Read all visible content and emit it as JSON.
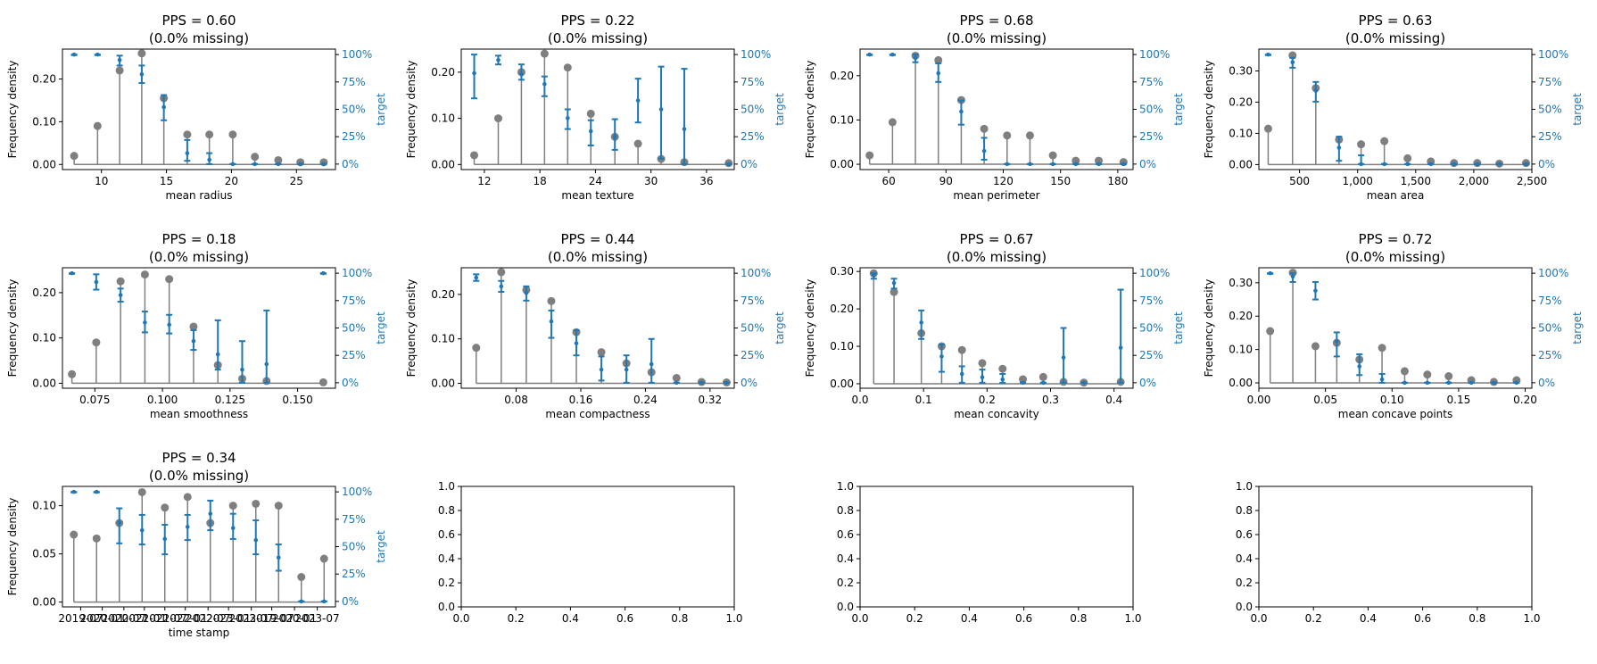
{
  "colors": {
    "stem": "#7f7f7f",
    "marker": "#7f7f7f",
    "target": "#1f77b4",
    "axis": "#000000"
  },
  "y_label": "Frequency density",
  "y2_label": "target",
  "y2_ticks": [
    "0%",
    "25%",
    "50%",
    "75%",
    "100%"
  ],
  "chart_data": [
    {
      "type": "stem+errorbar",
      "title": "PPS = 0.60",
      "subtitle": "(0.0% missing)",
      "xlabel": "mean radius",
      "xlim": [
        7.0,
        28.0
      ],
      "xticks": [
        10,
        15,
        20,
        25
      ],
      "xtick_labels": [
        "10",
        "15",
        "20",
        "25"
      ],
      "ylim": [
        -0.012,
        0.27
      ],
      "yticks": [
        0.0,
        0.1,
        0.2
      ],
      "ytick_labels": [
        "0.00",
        "0.10",
        "0.20"
      ],
      "x": [
        7.9,
        9.7,
        11.4,
        13.1,
        14.8,
        16.6,
        18.3,
        20.1,
        21.8,
        23.6,
        25.3,
        27.1
      ],
      "density": [
        0.02,
        0.09,
        0.22,
        0.26,
        0.155,
        0.07,
        0.07,
        0.07,
        0.018,
        0.01,
        0.005,
        0.005
      ],
      "target": [
        1.0,
        1.0,
        0.95,
        0.82,
        0.52,
        0.1,
        0.04,
        0.0,
        0.0,
        0.0,
        0.0,
        0.0
      ],
      "target_low": [
        0.995,
        0.995,
        0.9,
        0.74,
        0.4,
        0.03,
        0.0,
        0.0,
        0.0,
        0.0,
        0.0,
        0.0
      ],
      "target_high": [
        1.0,
        1.0,
        0.99,
        0.9,
        0.63,
        0.22,
        0.1,
        0.0,
        0.0,
        0.0,
        0.0,
        0.0
      ]
    },
    {
      "type": "stem+errorbar",
      "title": "PPS = 0.22",
      "subtitle": "(0.0% missing)",
      "xlabel": "mean texture",
      "xlim": [
        9.5,
        39.0
      ],
      "xticks": [
        12,
        18,
        24,
        30,
        36
      ],
      "xtick_labels": [
        "12",
        "18",
        "24",
        "30",
        "36"
      ],
      "ylim": [
        -0.011,
        0.25
      ],
      "yticks": [
        0.0,
        0.1,
        0.2
      ],
      "ytick_labels": [
        "0.00",
        "0.10",
        "0.20"
      ],
      "x": [
        10.9,
        13.5,
        16.0,
        18.5,
        21.0,
        23.5,
        26.1,
        28.6,
        31.1,
        33.6,
        38.4
      ],
      "density": [
        0.02,
        0.1,
        0.2,
        0.24,
        0.21,
        0.11,
        0.06,
        0.045,
        0.012,
        0.005,
        0.003
      ],
      "target": [
        0.83,
        0.95,
        0.82,
        0.73,
        0.42,
        0.3,
        0.25,
        0.58,
        0.5,
        0.32,
        0.0
      ],
      "target_low": [
        0.6,
        0.91,
        0.77,
        0.62,
        0.32,
        0.17,
        0.13,
        0.38,
        0.05,
        0.0,
        0.0
      ],
      "target_high": [
        1.0,
        0.99,
        0.91,
        0.8,
        0.5,
        0.4,
        0.41,
        0.78,
        0.89,
        0.87,
        0.0
      ]
    },
    {
      "type": "stem+errorbar",
      "title": "PPS = 0.68",
      "subtitle": "(0.0% missing)",
      "xlabel": "mean perimeter",
      "xlim": [
        45.0,
        188.0
      ],
      "xticks": [
        60,
        90,
        120,
        150,
        180
      ],
      "xtick_labels": [
        "60",
        "90",
        "120",
        "150",
        "180"
      ],
      "ylim": [
        -0.012,
        0.26
      ],
      "yticks": [
        0.0,
        0.1,
        0.2
      ],
      "ytick_labels": [
        "0.00",
        "0.10",
        "0.20"
      ],
      "x": [
        50.0,
        62.0,
        74.0,
        86.0,
        98.0,
        110.0,
        122.0,
        134.0,
        146.0,
        158.0,
        170.0,
        183.0
      ],
      "density": [
        0.02,
        0.095,
        0.245,
        0.235,
        0.145,
        0.08,
        0.065,
        0.065,
        0.02,
        0.008,
        0.008,
        0.005
      ],
      "target": [
        1.0,
        1.0,
        0.97,
        0.83,
        0.48,
        0.12,
        0.0,
        0.0,
        0.0,
        0.0,
        0.0,
        0.0
      ],
      "target_low": [
        0.995,
        0.995,
        0.93,
        0.75,
        0.36,
        0.04,
        0.0,
        0.0,
        0.0,
        0.0,
        0.0,
        0.0
      ],
      "target_high": [
        1.0,
        1.0,
        1.0,
        0.92,
        0.58,
        0.24,
        0.0,
        0.0,
        0.0,
        0.0,
        0.0,
        0.0
      ]
    },
    {
      "type": "stem+errorbar",
      "title": "PPS = 0.63",
      "subtitle": "(0.0% missing)",
      "xlabel": "mean area",
      "xlim": [
        150,
        2500
      ],
      "xticks": [
        500,
        1000,
        1500,
        2000,
        2500
      ],
      "xtick_labels": [
        "500",
        "1,000",
        "1,500",
        "2,000",
        "2,500"
      ],
      "ylim": [
        -0.016,
        0.37
      ],
      "yticks": [
        0.0,
        0.1,
        0.2,
        0.3
      ],
      "ytick_labels": [
        "0.00",
        "0.10",
        "0.20",
        "0.30"
      ],
      "x": [
        230,
        440,
        640,
        840,
        1030,
        1230,
        1430,
        1630,
        1830,
        2030,
        2220,
        2450
      ],
      "density": [
        0.115,
        0.35,
        0.245,
        0.08,
        0.065,
        0.075,
        0.02,
        0.01,
        0.005,
        0.005,
        0.003,
        0.005
      ],
      "target": [
        1.0,
        0.93,
        0.67,
        0.15,
        0.0,
        0.0,
        0.0,
        0.0,
        0.0,
        0.0,
        0.0,
        0.0
      ],
      "target_low": [
        0.995,
        0.88,
        0.57,
        0.03,
        0.0,
        0.0,
        0.0,
        0.0,
        0.0,
        0.0,
        0.0,
        0.0
      ],
      "target_high": [
        1.0,
        0.97,
        0.75,
        0.25,
        0.08,
        0.0,
        0.0,
        0.0,
        0.0,
        0.0,
        0.0,
        0.0
      ]
    },
    {
      "type": "stem+errorbar",
      "title": "PPS = 0.18",
      "subtitle": "(0.0% missing)",
      "xlabel": "mean smoothness",
      "xlim": [
        0.063,
        0.164
      ],
      "xticks": [
        0.075,
        0.1,
        0.125,
        0.15
      ],
      "xtick_labels": [
        "0.075",
        "0.100",
        "0.125",
        "0.150"
      ],
      "ylim": [
        -0.011,
        0.255
      ],
      "yticks": [
        0.0,
        0.1,
        0.2
      ],
      "ytick_labels": [
        "0.00",
        "0.10",
        "0.20"
      ],
      "x": [
        0.0665,
        0.0755,
        0.0845,
        0.0935,
        0.1025,
        0.1115,
        0.1205,
        0.1295,
        0.1385,
        0.1595
      ],
      "density": [
        0.02,
        0.09,
        0.225,
        0.24,
        0.23,
        0.125,
        0.04,
        0.01,
        0.005,
        0.002
      ],
      "target": [
        1.0,
        0.92,
        0.8,
        0.55,
        0.53,
        0.38,
        0.26,
        0.12,
        0.17,
        1.0
      ],
      "target_low": [
        0.995,
        0.85,
        0.74,
        0.46,
        0.45,
        0.3,
        0.12,
        0.0,
        0.0,
        0.995
      ],
      "target_high": [
        1.0,
        0.99,
        0.86,
        0.65,
        0.62,
        0.48,
        0.57,
        0.38,
        0.66,
        1.0
      ]
    },
    {
      "type": "stem+errorbar",
      "title": "PPS = 0.44",
      "subtitle": "(0.0% missing)",
      "xlabel": "mean compactness",
      "xlim": [
        0.012,
        0.35
      ],
      "xticks": [
        0.08,
        0.16,
        0.24,
        0.32
      ],
      "xtick_labels": [
        "0.08",
        "0.16",
        "0.24",
        "0.32"
      ],
      "ylim": [
        -0.011,
        0.26
      ],
      "yticks": [
        0.0,
        0.1,
        0.2
      ],
      "ytick_labels": [
        "0.00",
        "0.10",
        "0.20"
      ],
      "x": [
        0.0305,
        0.0615,
        0.0925,
        0.1235,
        0.1545,
        0.1855,
        0.2165,
        0.2475,
        0.2785,
        0.3095,
        0.3405
      ],
      "density": [
        0.08,
        0.25,
        0.21,
        0.185,
        0.115,
        0.07,
        0.045,
        0.025,
        0.012,
        0.003,
        0.002
      ],
      "target": [
        0.96,
        0.88,
        0.82,
        0.56,
        0.36,
        0.12,
        0.12,
        0.17,
        0.0,
        0.0,
        0.0
      ],
      "target_low": [
        0.93,
        0.83,
        0.75,
        0.41,
        0.25,
        0.02,
        0.0,
        0.0,
        0.0,
        0.0,
        0.0
      ],
      "target_high": [
        0.99,
        0.93,
        0.88,
        0.66,
        0.48,
        0.24,
        0.25,
        0.4,
        0.0,
        0.0,
        0.0
      ]
    },
    {
      "type": "stem+errorbar",
      "title": "PPS = 0.67",
      "subtitle": "(0.0% missing)",
      "xlabel": "mean concavity",
      "xlim": [
        0.0,
        0.43
      ],
      "xticks": [
        0.0,
        0.1,
        0.2,
        0.3,
        0.4
      ],
      "xtick_labels": [
        "0.0",
        "0.1",
        "0.2",
        "0.3",
        "0.4"
      ],
      "ylim": [
        -0.012,
        0.31
      ],
      "yticks": [
        0.0,
        0.1,
        0.2,
        0.3
      ],
      "ytick_labels": [
        "0.00",
        "0.10",
        "0.20",
        "0.30"
      ],
      "x": [
        0.0215,
        0.0535,
        0.0965,
        0.1285,
        0.1605,
        0.1925,
        0.2245,
        0.2565,
        0.2885,
        0.3205,
        0.3525,
        0.4105
      ],
      "density": [
        0.295,
        0.245,
        0.135,
        0.1,
        0.09,
        0.055,
        0.04,
        0.012,
        0.018,
        0.005,
        0.003,
        0.005
      ],
      "target": [
        0.98,
        0.91,
        0.55,
        0.24,
        0.08,
        0.05,
        0.03,
        0.0,
        0.0,
        0.23,
        0.0,
        0.32
      ],
      "target_low": [
        0.95,
        0.86,
        0.4,
        0.1,
        0.0,
        0.0,
        0.0,
        0.0,
        0.0,
        0.0,
        0.0,
        0.0
      ],
      "target_high": [
        1.0,
        0.95,
        0.66,
        0.35,
        0.15,
        0.12,
        0.08,
        0.0,
        0.0,
        0.5,
        0.0,
        0.85
      ]
    },
    {
      "type": "stem+errorbar",
      "title": "PPS = 0.72",
      "subtitle": "(0.0% missing)",
      "xlabel": "mean concave points",
      "xlim": [
        0.0,
        0.205
      ],
      "xticks": [
        0.0,
        0.05,
        0.1,
        0.15,
        0.2
      ],
      "xtick_labels": [
        "0.00",
        "0.05",
        "0.10",
        "0.15",
        "0.20"
      ],
      "ylim": [
        -0.016,
        0.345
      ],
      "yticks": [
        0.0,
        0.1,
        0.2,
        0.3
      ],
      "ytick_labels": [
        "0.00",
        "0.10",
        "0.20",
        "0.30"
      ],
      "x": [
        0.0085,
        0.0255,
        0.0425,
        0.0585,
        0.0755,
        0.0925,
        0.1095,
        0.1265,
        0.1425,
        0.1595,
        0.1765,
        0.1935
      ],
      "density": [
        0.155,
        0.33,
        0.11,
        0.12,
        0.07,
        0.105,
        0.035,
        0.025,
        0.02,
        0.008,
        0.003,
        0.008
      ],
      "target": [
        1.0,
        0.97,
        0.84,
        0.38,
        0.15,
        0.03,
        0.0,
        0.0,
        0.0,
        0.0,
        0.0,
        0.0
      ],
      "target_low": [
        0.995,
        0.92,
        0.76,
        0.24,
        0.07,
        0.0,
        0.0,
        0.0,
        0.0,
        0.0,
        0.0,
        0.0
      ],
      "target_high": [
        1.0,
        1.0,
        0.92,
        0.46,
        0.26,
        0.08,
        0.0,
        0.0,
        0.0,
        0.0,
        0.0,
        0.0
      ]
    },
    {
      "type": "stem+errorbar",
      "title": "PPS = 0.34",
      "subtitle": "(0.0% missing)",
      "xlabel": "time stamp",
      "xlim": [
        -0.5,
        11.5
      ],
      "xticks": [
        0.3,
        1.25,
        2.2,
        3.1,
        4.0,
        4.9,
        5.9,
        6.8,
        7.8,
        8.7,
        9.7,
        10.7
      ],
      "xtick_labels": [
        "2019-07",
        "2020-01",
        "2020-07",
        "2021-01",
        "2021-07",
        "2022-01",
        "2022-07",
        "2023-01",
        "2023-07",
        "2019-07",
        "2020-01",
        "2023-07"
      ],
      "ylim": [
        -0.005,
        0.12
      ],
      "yticks": [
        0.0,
        0.05,
        0.1
      ],
      "ytick_labels": [
        "0.00",
        "0.05",
        "0.10"
      ],
      "x": [
        0,
        1,
        2,
        3,
        4,
        5,
        6,
        7,
        8,
        9,
        10,
        11
      ],
      "density": [
        0.07,
        0.066,
        0.082,
        0.114,
        0.098,
        0.109,
        0.082,
        0.1,
        0.102,
        0.1,
        0.026,
        0.045
      ],
      "target": [
        1.0,
        1.0,
        0.72,
        0.65,
        0.57,
        0.68,
        0.8,
        0.67,
        0.56,
        0.4,
        0.0,
        0.0
      ],
      "target_low": [
        0.995,
        0.995,
        0.53,
        0.52,
        0.43,
        0.56,
        0.65,
        0.57,
        0.43,
        0.28,
        0.0,
        0.0
      ],
      "target_high": [
        1.0,
        1.0,
        0.85,
        0.79,
        0.7,
        0.79,
        0.92,
        0.8,
        0.74,
        0.52,
        0.0,
        0.0
      ]
    },
    {
      "type": "empty",
      "xlim": [
        0,
        1
      ],
      "ylim": [
        0,
        1
      ],
      "xticks": [
        0.0,
        0.2,
        0.4,
        0.6,
        0.8,
        1.0
      ],
      "xtick_labels": [
        "0.0",
        "0.2",
        "0.4",
        "0.6",
        "0.8",
        "1.0"
      ],
      "yticks": [
        0.0,
        0.2,
        0.4,
        0.6,
        0.8,
        1.0
      ],
      "ytick_labels": [
        "0.0",
        "0.2",
        "0.4",
        "0.6",
        "0.8",
        "1.0"
      ]
    },
    {
      "type": "empty",
      "xlim": [
        0,
        1
      ],
      "ylim": [
        0,
        1
      ],
      "xticks": [
        0.0,
        0.2,
        0.4,
        0.6,
        0.8,
        1.0
      ],
      "xtick_labels": [
        "0.0",
        "0.2",
        "0.4",
        "0.6",
        "0.8",
        "1.0"
      ],
      "yticks": [
        0.0,
        0.2,
        0.4,
        0.6,
        0.8,
        1.0
      ],
      "ytick_labels": [
        "0.0",
        "0.2",
        "0.4",
        "0.6",
        "0.8",
        "1.0"
      ]
    },
    {
      "type": "empty",
      "xlim": [
        0,
        1
      ],
      "ylim": [
        0,
        1
      ],
      "xticks": [
        0.0,
        0.2,
        0.4,
        0.6,
        0.8,
        1.0
      ],
      "xtick_labels": [
        "0.0",
        "0.2",
        "0.4",
        "0.6",
        "0.8",
        "1.0"
      ],
      "yticks": [
        0.0,
        0.2,
        0.4,
        0.6,
        0.8,
        1.0
      ],
      "ytick_labels": [
        "0.0",
        "0.2",
        "0.4",
        "0.6",
        "0.8",
        "1.0"
      ]
    }
  ]
}
